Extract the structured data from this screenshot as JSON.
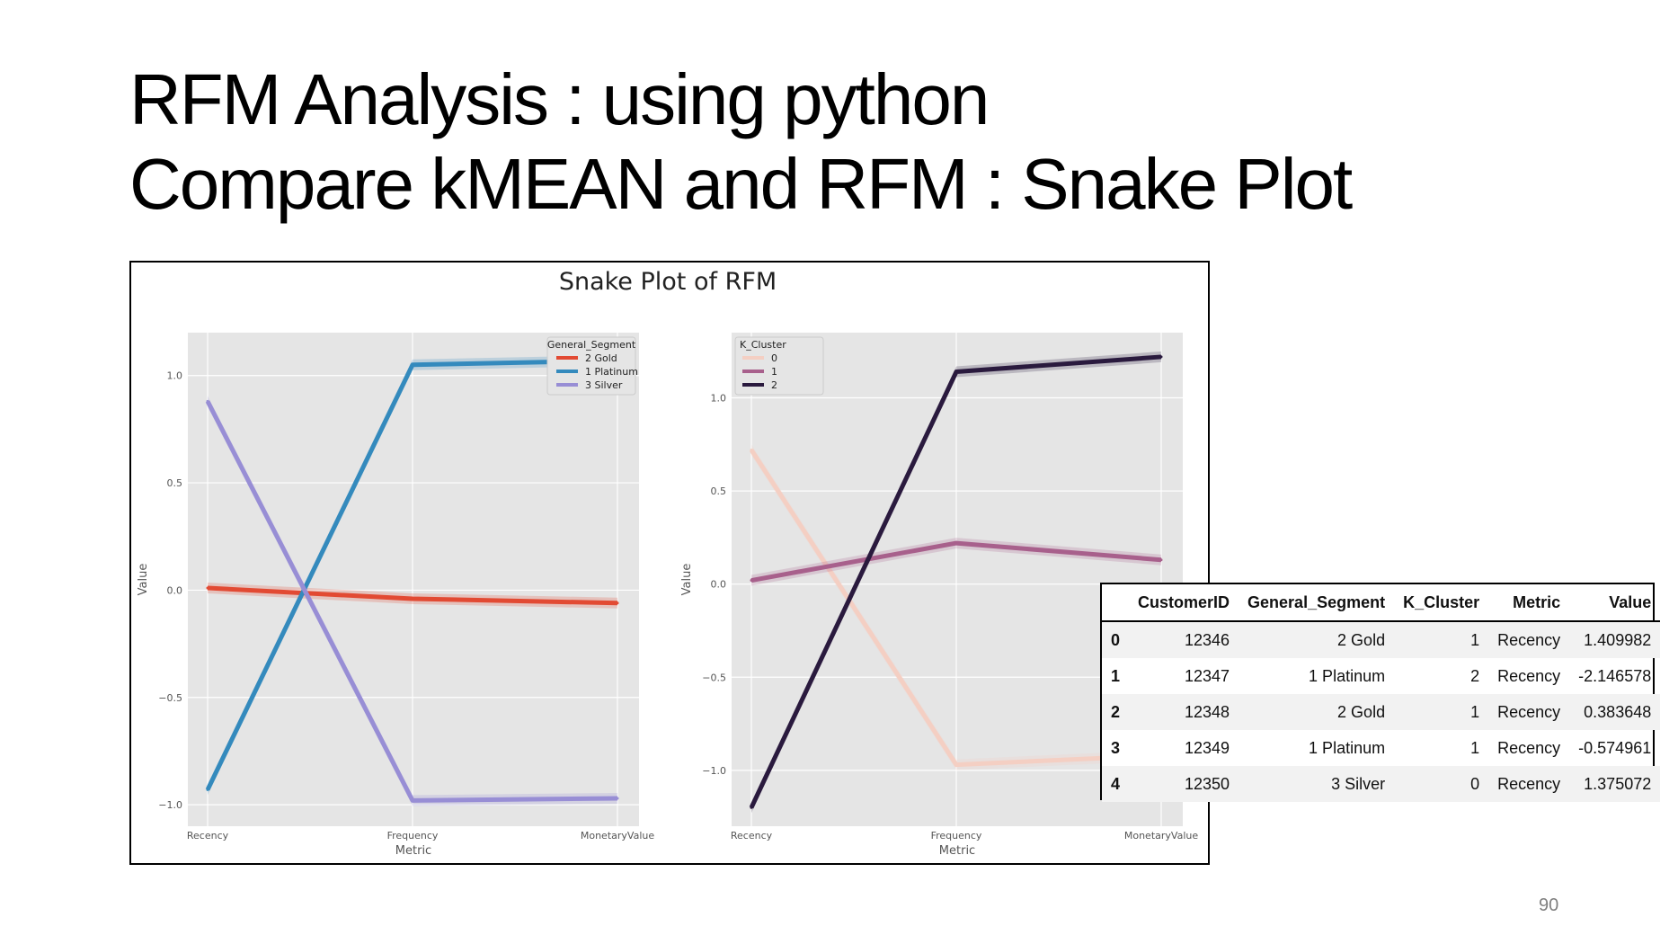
{
  "slide": {
    "title_line1": "RFM Analysis : using python",
    "title_line2": "Compare kMEAN and RFM : Snake Plot",
    "page_number": "90"
  },
  "figure": {
    "suptitle": "Snake Plot of RFM"
  },
  "chart_data": [
    {
      "type": "line",
      "title": "",
      "categories": [
        "Recency",
        "Frequency",
        "MonetaryValue"
      ],
      "xlabel": "Metric",
      "ylabel": "Value",
      "ylim": [
        -1.1,
        1.2
      ],
      "yticks": [
        1.0,
        0.5,
        0.0,
        -0.5,
        -1.0
      ],
      "ytick_labels": [
        "1.0",
        "0.5",
        "0.0",
        "−0.5",
        "−1.0"
      ],
      "grid": true,
      "legend_title": "General_Segment",
      "legend_position": "top-right",
      "series": [
        {
          "name": "2 Gold",
          "color": "#e24a33",
          "values": [
            0.01,
            -0.04,
            -0.06
          ]
        },
        {
          "name": "1 Platinum",
          "color": "#348abd",
          "values": [
            -0.93,
            1.05,
            1.07
          ]
        },
        {
          "name": "3 Silver",
          "color": "#988ed5",
          "values": [
            0.88,
            -0.98,
            -0.97
          ]
        }
      ]
    },
    {
      "type": "line",
      "title": "",
      "categories": [
        "Recency",
        "Frequency",
        "MonetaryValue"
      ],
      "xlabel": "Metric",
      "ylabel": "Value",
      "ylim": [
        -1.3,
        1.35
      ],
      "yticks": [
        1.0,
        0.5,
        0.0,
        -0.5,
        -1.0
      ],
      "ytick_labels": [
        "1.0",
        "0.5",
        "0.0",
        "−0.5",
        "−1.0"
      ],
      "grid": true,
      "legend_title": "K_Cluster",
      "legend_position": "top-left",
      "series": [
        {
          "name": "0",
          "color": "#f4cfc3",
          "values": [
            0.72,
            -0.97,
            -0.92
          ]
        },
        {
          "name": "1",
          "color": "#a8608c",
          "values": [
            0.02,
            0.22,
            0.13
          ]
        },
        {
          "name": "2",
          "color": "#2a1a3e",
          "values": [
            -1.2,
            1.14,
            1.22
          ]
        }
      ]
    }
  ],
  "table": {
    "columns": [
      "",
      "CustomerID",
      "General_Segment",
      "K_Cluster",
      "Metric",
      "Value"
    ],
    "rows": [
      [
        "0",
        "12346",
        "2 Gold",
        "1",
        "Recency",
        "1.409982"
      ],
      [
        "1",
        "12347",
        "1 Platinum",
        "2",
        "Recency",
        "-2.146578"
      ],
      [
        "2",
        "12348",
        "2 Gold",
        "1",
        "Recency",
        "0.383648"
      ],
      [
        "3",
        "12349",
        "1 Platinum",
        "1",
        "Recency",
        "-0.574961"
      ],
      [
        "4",
        "12350",
        "3 Silver",
        "0",
        "Recency",
        "1.375072"
      ]
    ]
  }
}
